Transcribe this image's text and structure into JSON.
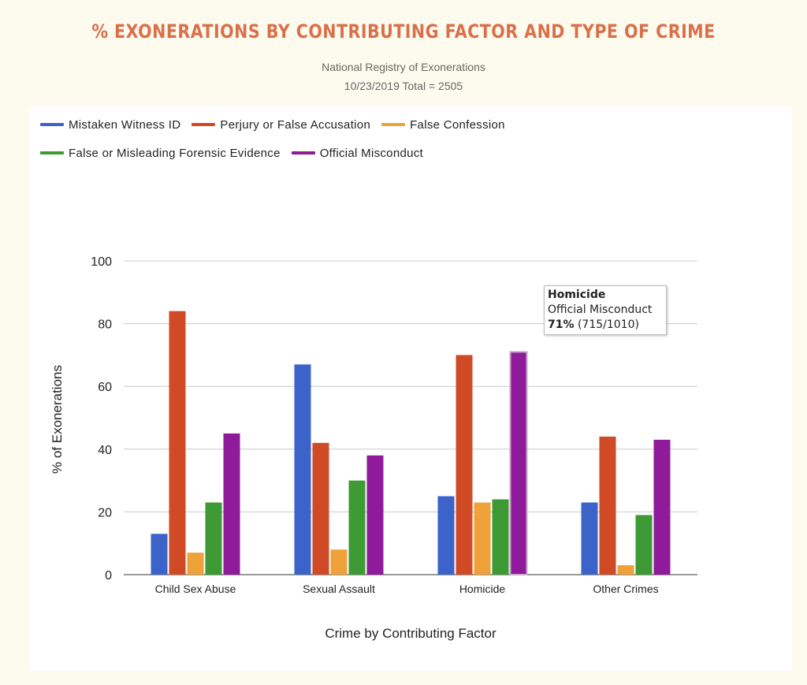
{
  "header": {
    "title": "% EXONERATIONS BY CONTRIBUTING FACTOR AND TYPE OF CRIME",
    "source": "National Registry of Exonerations",
    "date_total": "10/23/2019 Total = 2505"
  },
  "tooltip": {
    "category": "Homicide",
    "series": "Official Misconduct",
    "percent": "71%",
    "fraction": "(715/1010)"
  },
  "chart_data": {
    "type": "bar",
    "xlabel": "Crime by Contributing Factor",
    "ylabel": "% of Exonerations",
    "ylim": [
      0,
      100
    ],
    "yticks": [
      "0",
      "20",
      "40",
      "60",
      "80",
      "100"
    ],
    "grid": true,
    "legend_position": "top",
    "categories": [
      "Child Sex Abuse",
      "Sexual Assault",
      "Homicide",
      "Other Crimes"
    ],
    "series": [
      {
        "name": "Mistaken Witness ID",
        "color": "#3b63c9",
        "values": [
          13,
          67,
          25,
          23
        ]
      },
      {
        "name": "Perjury or False Accusation",
        "color": "#d14a26",
        "values": [
          84,
          42,
          70,
          44
        ]
      },
      {
        "name": "False Confession",
        "color": "#f0a23a",
        "values": [
          7,
          8,
          23,
          3
        ]
      },
      {
        "name": "False or Misleading Forensic Evidence",
        "color": "#3e9a35",
        "values": [
          23,
          30,
          24,
          19
        ]
      },
      {
        "name": "Official Misconduct",
        "color": "#8f1a9a",
        "values": [
          45,
          38,
          71,
          43
        ]
      }
    ]
  }
}
